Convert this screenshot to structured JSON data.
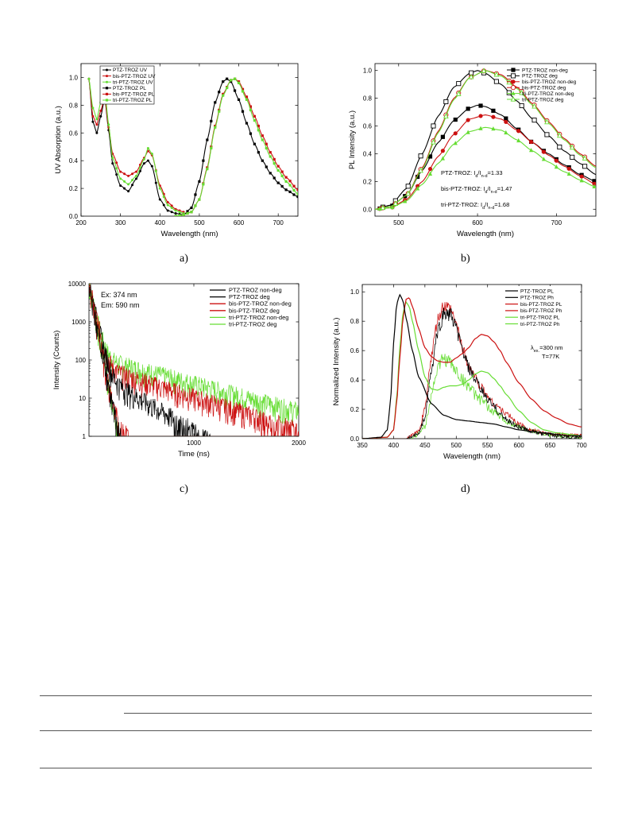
{
  "captions": [
    "a)",
    "b)",
    "c)",
    "d)"
  ],
  "colors": {
    "black": "#000000",
    "red": "#cc1111",
    "green": "#66dd33",
    "darkred": "#b01a1a"
  },
  "chart_data": [
    {
      "id": "a",
      "type": "line",
      "xlabel": "Wavelength (nm)",
      "ylabel": "UV Absorption (a.u.)",
      "xlim": [
        200,
        750
      ],
      "ylim": [
        0.0,
        1.1
      ],
      "xticks": [
        200,
        300,
        400,
        500,
        600,
        700
      ],
      "yticks": [
        0.0,
        0.2,
        0.4,
        0.6,
        0.8,
        1.0
      ],
      "legend_position": "top-left",
      "series": [
        {
          "name": "PTZ-TROZ UV",
          "color": "#000000",
          "marker": "dot",
          "x": [
            220,
            230,
            240,
            250,
            260,
            270,
            280,
            300,
            320,
            340,
            360,
            370,
            380,
            400,
            420,
            440,
            460
          ],
          "y": [
            0.99,
            0.68,
            0.6,
            0.72,
            0.85,
            0.62,
            0.38,
            0.22,
            0.18,
            0.27,
            0.38,
            0.4,
            0.36,
            0.12,
            0.04,
            0.02,
            0.01
          ]
        },
        {
          "name": "bis-PTZ-TROZ UV",
          "color": "#cc1111",
          "marker": "dot",
          "x": [
            220,
            230,
            240,
            250,
            260,
            270,
            280,
            300,
            320,
            340,
            360,
            370,
            380,
            400,
            420,
            440,
            460
          ],
          "y": [
            0.99,
            0.72,
            0.66,
            0.76,
            0.86,
            0.64,
            0.45,
            0.32,
            0.29,
            0.32,
            0.42,
            0.47,
            0.44,
            0.22,
            0.1,
            0.05,
            0.03
          ]
        },
        {
          "name": "tri-PTZ-TROZ UV",
          "color": "#66dd33",
          "marker": "dot",
          "x": [
            220,
            230,
            240,
            250,
            260,
            270,
            280,
            300,
            320,
            340,
            360,
            370,
            380,
            400,
            420,
            440,
            460
          ],
          "y": [
            0.99,
            0.78,
            0.7,
            0.82,
            0.91,
            0.66,
            0.42,
            0.27,
            0.23,
            0.29,
            0.41,
            0.49,
            0.45,
            0.2,
            0.08,
            0.04,
            0.02
          ]
        },
        {
          "name": "PTZ-TROZ PL",
          "color": "#000000",
          "marker": "square",
          "x": [
            440,
            460,
            480,
            500,
            520,
            540,
            560,
            570,
            580,
            600,
            620,
            640,
            660,
            680,
            700,
            720,
            750
          ],
          "y": [
            0.0,
            0.01,
            0.06,
            0.25,
            0.55,
            0.82,
            0.97,
            0.99,
            0.97,
            0.84,
            0.67,
            0.52,
            0.4,
            0.31,
            0.24,
            0.19,
            0.14
          ]
        },
        {
          "name": "bis-PTZ-TROZ PL",
          "color": "#cc1111",
          "marker": "square",
          "x": [
            440,
            460,
            480,
            500,
            520,
            540,
            560,
            580,
            590,
            600,
            620,
            640,
            660,
            680,
            700,
            720,
            750
          ],
          "y": [
            0.0,
            0.01,
            0.03,
            0.12,
            0.35,
            0.65,
            0.88,
            0.98,
            0.99,
            0.97,
            0.86,
            0.72,
            0.58,
            0.46,
            0.36,
            0.28,
            0.19
          ]
        },
        {
          "name": "tri-PTZ-TROZ PL",
          "color": "#66dd33",
          "marker": "square",
          "x": [
            440,
            460,
            480,
            500,
            520,
            540,
            560,
            580,
            590,
            600,
            620,
            640,
            660,
            680,
            700,
            720,
            750
          ],
          "y": [
            0.0,
            0.01,
            0.03,
            0.12,
            0.34,
            0.64,
            0.87,
            0.98,
            0.99,
            0.96,
            0.84,
            0.69,
            0.55,
            0.43,
            0.33,
            0.25,
            0.16
          ]
        }
      ]
    },
    {
      "id": "b",
      "type": "line",
      "xlabel": "Wavelength (nm)",
      "ylabel": "PL Intensity (a.u.)",
      "xlim": [
        470,
        750
      ],
      "ylim": [
        -0.05,
        1.05
      ],
      "xticks": [
        500,
        600,
        700
      ],
      "yticks": [
        0.0,
        0.2,
        0.4,
        0.6,
        0.8,
        1.0
      ],
      "legend_position": "top-right",
      "annotations": [
        {
          "text": "PTZ-TROZ: I",
          "sub1": "d",
          "mid": "/I",
          "sub2": "n-d",
          "tail": "=1.33"
        },
        {
          "text": "bis-PTZ-TROZ: I",
          "sub1": "d",
          "mid": "/I",
          "sub2": "n-d",
          "tail": "=1.47"
        },
        {
          "text": "tri-PTZ-TROZ: I",
          "sub1": "d",
          "mid": "/I",
          "sub2": "n-d",
          "tail": "=1.68"
        }
      ],
      "series": [
        {
          "name": "PTZ-TROZ non-deg",
          "color": "#000000",
          "marker": "filled-square",
          "x": [
            470,
            490,
            510,
            530,
            550,
            570,
            590,
            600,
            610,
            630,
            650,
            670,
            690,
            710,
            730,
            750
          ],
          "y": [
            0.0,
            0.02,
            0.1,
            0.28,
            0.48,
            0.64,
            0.73,
            0.75,
            0.74,
            0.68,
            0.58,
            0.48,
            0.4,
            0.32,
            0.25,
            0.2
          ]
        },
        {
          "name": "PTZ-TROZ deg",
          "color": "#000000",
          "marker": "open-square",
          "x": [
            470,
            490,
            510,
            530,
            550,
            570,
            590,
            600,
            610,
            630,
            650,
            670,
            690,
            710,
            730,
            750
          ],
          "y": [
            0.0,
            0.03,
            0.15,
            0.4,
            0.67,
            0.88,
            0.98,
            1.0,
            0.98,
            0.9,
            0.78,
            0.65,
            0.53,
            0.42,
            0.33,
            0.25
          ]
        },
        {
          "name": "bis-PTZ-TROZ non-deg",
          "color": "#cc1111",
          "marker": "filled-circle",
          "x": [
            470,
            490,
            510,
            530,
            550,
            570,
            590,
            610,
            630,
            650,
            670,
            690,
            710,
            730,
            750
          ],
          "y": [
            0.0,
            0.01,
            0.07,
            0.2,
            0.38,
            0.54,
            0.65,
            0.68,
            0.65,
            0.57,
            0.48,
            0.39,
            0.31,
            0.24,
            0.18
          ]
        },
        {
          "name": "bis-PTZ-TROZ deg",
          "color": "#cc1111",
          "marker": "open-circle",
          "x": [
            470,
            490,
            510,
            530,
            550,
            570,
            590,
            610,
            630,
            650,
            670,
            690,
            710,
            730,
            750
          ],
          "y": [
            0.0,
            0.02,
            0.1,
            0.3,
            0.56,
            0.8,
            0.95,
            1.0,
            0.97,
            0.88,
            0.76,
            0.63,
            0.51,
            0.4,
            0.31
          ]
        },
        {
          "name": "tri-PTZ-TROZ non-deg",
          "color": "#66dd33",
          "marker": "filled-triangle",
          "x": [
            470,
            490,
            510,
            530,
            550,
            570,
            590,
            610,
            630,
            650,
            670,
            690,
            710,
            730,
            750
          ],
          "y": [
            0.0,
            0.01,
            0.06,
            0.18,
            0.33,
            0.47,
            0.56,
            0.59,
            0.57,
            0.5,
            0.42,
            0.34,
            0.27,
            0.21,
            0.16
          ]
        },
        {
          "name": "tri-PTZ-TROZ deg",
          "color": "#66dd33",
          "marker": "open-triangle",
          "x": [
            470,
            490,
            510,
            530,
            550,
            570,
            590,
            610,
            630,
            650,
            670,
            690,
            710,
            730,
            750
          ],
          "y": [
            0.0,
            0.02,
            0.1,
            0.29,
            0.55,
            0.79,
            0.95,
            1.0,
            0.96,
            0.87,
            0.75,
            0.62,
            0.5,
            0.39,
            0.3
          ]
        }
      ]
    },
    {
      "id": "c",
      "type": "line",
      "yscale": "log",
      "xlabel": "Time (ns)",
      "ylabel": "Intensity (Counts)",
      "xlim": [
        0,
        2000
      ],
      "ylim": [
        1,
        10000
      ],
      "xticks": [
        1000,
        2000
      ],
      "yticks": [
        1,
        10,
        100,
        1000,
        10000
      ],
      "legend_position": "top-right",
      "annotations": [
        "Ex:  374 nm",
        "Em:  590 nm"
      ],
      "series": [
        {
          "name": "PTZ-TROZ non-deg",
          "color": "#000000",
          "peak": 10000,
          "fast": 35,
          "amp": 60,
          "tau": 270
        },
        {
          "name": "PTZ-TROZ deg",
          "color": "#000000",
          "peak": 10000,
          "fast": 30,
          "amp": 8,
          "tau": 120
        },
        {
          "name": "bis-PTZ-TROZ non-deg",
          "color": "#cc1111",
          "peak": 10000,
          "fast": 35,
          "amp": 80,
          "tau": 500
        },
        {
          "name": "bis-PTZ-TROZ deg",
          "color": "#cc1111",
          "peak": 10000,
          "fast": 30,
          "amp": 10,
          "tau": 160
        },
        {
          "name": "tri-PTZ-TROZ non-deg",
          "color": "#66dd33",
          "peak": 10000,
          "fast": 35,
          "amp": 130,
          "tau": 600
        },
        {
          "name": "tri-PTZ-TROZ deg",
          "color": "#66dd33",
          "peak": 10000,
          "fast": 30,
          "amp": 6,
          "tau": 90
        }
      ]
    },
    {
      "id": "d",
      "type": "line",
      "xlabel": "Wavelength (nm)",
      "ylabel": "Normalized Intensity (a.u.)",
      "xlim": [
        350,
        700
      ],
      "ylim": [
        0.0,
        1.05
      ],
      "xticks": [
        350,
        400,
        450,
        500,
        550,
        600,
        650,
        700
      ],
      "yticks": [
        0.0,
        0.2,
        0.4,
        0.6,
        0.8,
        1.0
      ],
      "legend_position": "top-right",
      "annotations": [
        "λ",
        "ex.",
        "=300 nm",
        "T=77K"
      ],
      "series": [
        {
          "name": "PTZ-TROZ PL",
          "color": "#000000",
          "noise": 0,
          "x": [
            350,
            380,
            390,
            395,
            400,
            405,
            410,
            415,
            420,
            430,
            440,
            460,
            480,
            500,
            520,
            540,
            560,
            580,
            600,
            620,
            640,
            660,
            680,
            700
          ],
          "y": [
            0,
            0.01,
            0.06,
            0.25,
            0.65,
            0.92,
            0.98,
            0.94,
            0.82,
            0.6,
            0.42,
            0.24,
            0.16,
            0.13,
            0.12,
            0.11,
            0.1,
            0.08,
            0.06,
            0.05,
            0.04,
            0.03,
            0.02,
            0.02
          ]
        },
        {
          "name": "PTZ-TROZ Ph",
          "color": "#000000",
          "noise": 0.06,
          "x": [
            350,
            420,
            440,
            450,
            460,
            470,
            480,
            490,
            500,
            510,
            520,
            530,
            540,
            550,
            560,
            570,
            580,
            600,
            620,
            640,
            660,
            700
          ],
          "y": [
            0,
            0,
            0.03,
            0.15,
            0.45,
            0.72,
            0.85,
            0.85,
            0.75,
            0.6,
            0.48,
            0.4,
            0.33,
            0.27,
            0.22,
            0.17,
            0.13,
            0.08,
            0.05,
            0.03,
            0.02,
            0.01
          ]
        },
        {
          "name": "bis-PTZ-TROZ PL",
          "color": "#cc1111",
          "noise": 0,
          "x": [
            350,
            390,
            400,
            405,
            410,
            415,
            420,
            425,
            430,
            440,
            450,
            460,
            470,
            480,
            490,
            500,
            510,
            520,
            530,
            540,
            550,
            560,
            570,
            580,
            600,
            620,
            640,
            660,
            680,
            700
          ],
          "y": [
            0,
            0.01,
            0.06,
            0.25,
            0.55,
            0.82,
            0.95,
            0.96,
            0.9,
            0.75,
            0.62,
            0.56,
            0.53,
            0.52,
            0.52,
            0.55,
            0.58,
            0.62,
            0.68,
            0.71,
            0.7,
            0.66,
            0.6,
            0.52,
            0.38,
            0.27,
            0.19,
            0.14,
            0.1,
            0.08
          ]
        },
        {
          "name": "bis-PTZ-TROZ Ph",
          "color": "#cc1111",
          "noise": 0.05,
          "x": [
            350,
            420,
            440,
            450,
            460,
            470,
            480,
            490,
            500,
            510,
            520,
            530,
            540,
            550,
            560,
            580,
            600,
            620,
            640,
            660,
            700
          ],
          "y": [
            0,
            0,
            0.05,
            0.2,
            0.55,
            0.8,
            0.9,
            0.88,
            0.78,
            0.62,
            0.5,
            0.42,
            0.35,
            0.29,
            0.24,
            0.17,
            0.1,
            0.06,
            0.04,
            0.03,
            0.02
          ]
        },
        {
          "name": "tri-PTZ-TROZ PL",
          "color": "#66dd33",
          "noise": 0,
          "x": [
            350,
            390,
            400,
            405,
            410,
            415,
            420,
            425,
            430,
            440,
            450,
            460,
            470,
            480,
            490,
            500,
            510,
            520,
            530,
            540,
            550,
            560,
            570,
            580,
            600,
            620,
            640,
            660,
            700
          ],
          "y": [
            0,
            0.01,
            0.06,
            0.28,
            0.62,
            0.86,
            0.93,
            0.9,
            0.8,
            0.6,
            0.42,
            0.34,
            0.33,
            0.35,
            0.36,
            0.36,
            0.37,
            0.4,
            0.44,
            0.46,
            0.45,
            0.41,
            0.36,
            0.3,
            0.19,
            0.11,
            0.06,
            0.04,
            0.02
          ]
        },
        {
          "name": "tri-PTZ-TROZ Ph",
          "color": "#66dd33",
          "noise": 0.07,
          "x": [
            350,
            430,
            450,
            460,
            470,
            480,
            490,
            500,
            510,
            520,
            530,
            540,
            560,
            580,
            600,
            620,
            640,
            660,
            700
          ],
          "y": [
            0,
            0,
            0.08,
            0.3,
            0.48,
            0.55,
            0.52,
            0.46,
            0.4,
            0.36,
            0.3,
            0.26,
            0.18,
            0.12,
            0.08,
            0.05,
            0.03,
            0.02,
            0.01
          ]
        }
      ]
    }
  ]
}
